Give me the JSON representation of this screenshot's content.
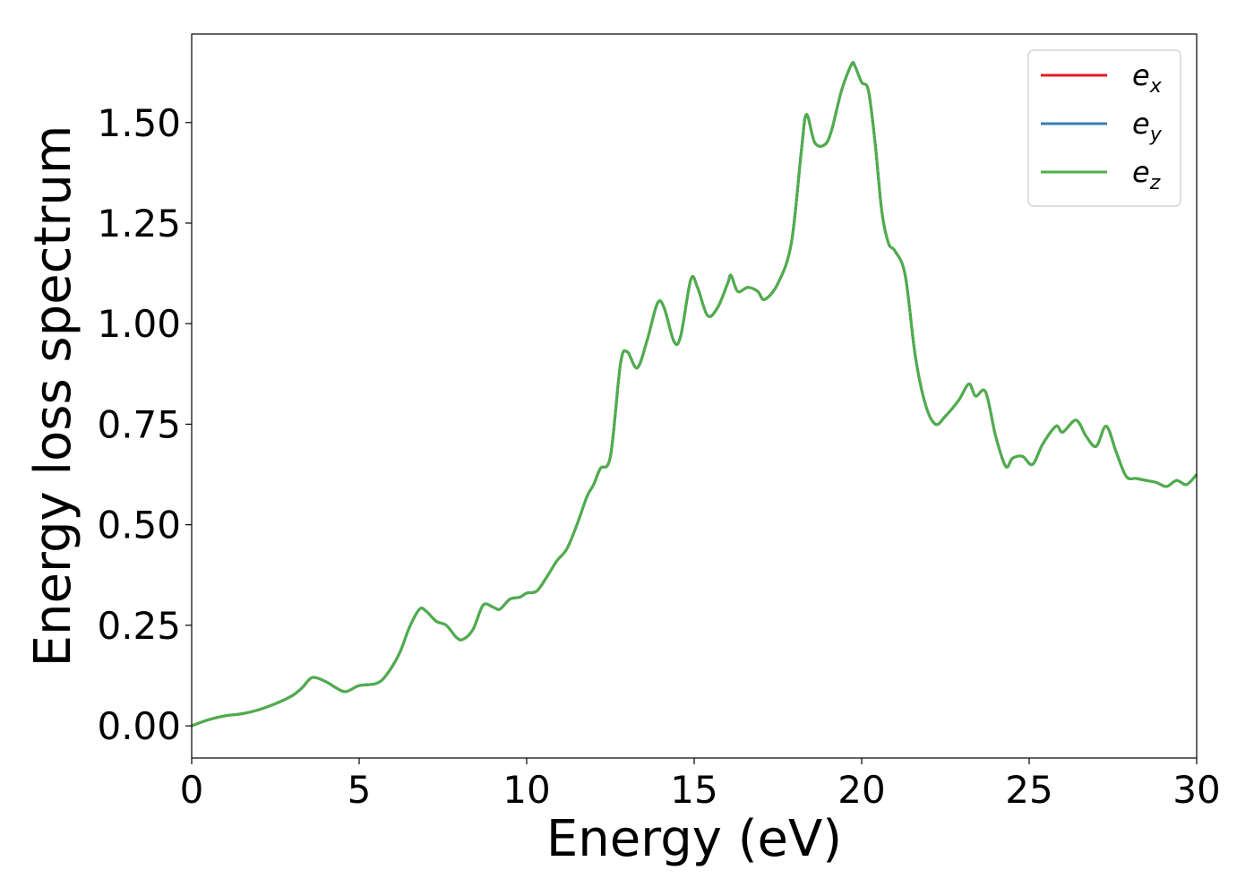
{
  "chart_data": {
    "type": "line",
    "title": "",
    "xlabel": "Energy (eV)",
    "ylabel": "Energy loss spectrum",
    "xlim": [
      0,
      30
    ],
    "ylim": [
      -0.08,
      1.72
    ],
    "xticks": [
      0,
      5,
      10,
      15,
      20,
      25,
      30
    ],
    "xtick_labels": [
      "0",
      "5",
      "10",
      "15",
      "20",
      "25",
      "30"
    ],
    "yticks": [
      0.0,
      0.25,
      0.5,
      0.75,
      1.0,
      1.25,
      1.5
    ],
    "ytick_labels": [
      "0.00",
      "0.25",
      "0.50",
      "0.75",
      "1.00",
      "1.25",
      "1.50"
    ],
    "grid": false,
    "legend_position": "top-right",
    "x": [
      0.0,
      0.5,
      1.0,
      1.5,
      2.0,
      2.5,
      3.0,
      3.3,
      3.6,
      4.0,
      4.3,
      4.6,
      5.0,
      5.5,
      5.8,
      6.2,
      6.5,
      6.8,
      7.0,
      7.3,
      7.6,
      7.9,
      8.1,
      8.4,
      8.7,
      9.0,
      9.2,
      9.5,
      9.8,
      10.0,
      10.3,
      10.6,
      10.9,
      11.2,
      11.5,
      11.8,
      12.0,
      12.2,
      12.5,
      12.8,
      13.0,
      13.3,
      13.6,
      13.9,
      14.1,
      14.4,
      14.6,
      14.9,
      15.1,
      15.4,
      15.7,
      16.0,
      16.1,
      16.3,
      16.6,
      16.9,
      17.1,
      17.5,
      17.9,
      18.2,
      18.35,
      18.6,
      18.9,
      19.1,
      19.4,
      19.7,
      19.8,
      20.0,
      20.2,
      20.4,
      20.6,
      20.8,
      21.0,
      21.3,
      21.6,
      21.9,
      22.2,
      22.5,
      22.9,
      23.2,
      23.4,
      23.7,
      24.0,
      24.3,
      24.5,
      24.8,
      25.1,
      25.4,
      25.8,
      26.0,
      26.4,
      26.7,
      27.0,
      27.3,
      27.6,
      27.9,
      28.2,
      28.5,
      28.8,
      29.1,
      29.4,
      29.7,
      30.0
    ],
    "series": [
      {
        "name": "e_x",
        "color": "#e41a1c",
        "values": [
          0.0,
          0.015,
          0.025,
          0.03,
          0.04,
          0.055,
          0.075,
          0.095,
          0.12,
          0.11,
          0.095,
          0.085,
          0.1,
          0.105,
          0.125,
          0.18,
          0.245,
          0.29,
          0.285,
          0.26,
          0.25,
          0.22,
          0.215,
          0.24,
          0.3,
          0.295,
          0.29,
          0.315,
          0.32,
          0.33,
          0.335,
          0.37,
          0.41,
          0.44,
          0.5,
          0.57,
          0.6,
          0.64,
          0.67,
          0.9,
          0.93,
          0.89,
          0.96,
          1.05,
          1.04,
          0.955,
          0.97,
          1.11,
          1.09,
          1.02,
          1.04,
          1.1,
          1.12,
          1.08,
          1.09,
          1.08,
          1.06,
          1.1,
          1.2,
          1.43,
          1.52,
          1.45,
          1.445,
          1.48,
          1.58,
          1.645,
          1.64,
          1.6,
          1.58,
          1.45,
          1.28,
          1.2,
          1.18,
          1.12,
          0.92,
          0.8,
          0.75,
          0.77,
          0.81,
          0.85,
          0.82,
          0.83,
          0.72,
          0.645,
          0.665,
          0.67,
          0.65,
          0.7,
          0.745,
          0.73,
          0.76,
          0.72,
          0.695,
          0.745,
          0.68,
          0.62,
          0.615,
          0.61,
          0.605,
          0.595,
          0.61,
          0.6,
          0.625
        ]
      },
      {
        "name": "e_y",
        "color": "#377eb8",
        "values": [
          0.0,
          0.015,
          0.025,
          0.03,
          0.04,
          0.055,
          0.075,
          0.095,
          0.12,
          0.11,
          0.095,
          0.085,
          0.1,
          0.105,
          0.125,
          0.18,
          0.245,
          0.29,
          0.285,
          0.26,
          0.25,
          0.22,
          0.215,
          0.24,
          0.3,
          0.295,
          0.29,
          0.315,
          0.32,
          0.33,
          0.335,
          0.37,
          0.41,
          0.44,
          0.5,
          0.57,
          0.6,
          0.64,
          0.67,
          0.9,
          0.93,
          0.89,
          0.96,
          1.05,
          1.04,
          0.955,
          0.97,
          1.11,
          1.09,
          1.02,
          1.04,
          1.1,
          1.12,
          1.08,
          1.09,
          1.08,
          1.06,
          1.1,
          1.2,
          1.43,
          1.52,
          1.45,
          1.445,
          1.48,
          1.58,
          1.645,
          1.64,
          1.6,
          1.58,
          1.45,
          1.28,
          1.2,
          1.18,
          1.12,
          0.92,
          0.8,
          0.75,
          0.77,
          0.81,
          0.85,
          0.82,
          0.83,
          0.72,
          0.645,
          0.665,
          0.67,
          0.65,
          0.7,
          0.745,
          0.73,
          0.76,
          0.72,
          0.695,
          0.745,
          0.68,
          0.62,
          0.615,
          0.61,
          0.605,
          0.595,
          0.61,
          0.6,
          0.625
        ]
      },
      {
        "name": "e_z",
        "color": "#4daf4a",
        "values": [
          0.0,
          0.015,
          0.025,
          0.03,
          0.04,
          0.055,
          0.075,
          0.095,
          0.12,
          0.11,
          0.095,
          0.085,
          0.1,
          0.105,
          0.125,
          0.18,
          0.245,
          0.29,
          0.285,
          0.26,
          0.25,
          0.22,
          0.215,
          0.24,
          0.3,
          0.295,
          0.29,
          0.315,
          0.32,
          0.33,
          0.335,
          0.37,
          0.41,
          0.44,
          0.5,
          0.57,
          0.6,
          0.64,
          0.67,
          0.9,
          0.93,
          0.89,
          0.96,
          1.05,
          1.04,
          0.955,
          0.97,
          1.11,
          1.09,
          1.02,
          1.04,
          1.1,
          1.12,
          1.08,
          1.09,
          1.08,
          1.06,
          1.1,
          1.2,
          1.43,
          1.52,
          1.45,
          1.445,
          1.48,
          1.58,
          1.645,
          1.64,
          1.6,
          1.58,
          1.45,
          1.28,
          1.2,
          1.18,
          1.12,
          0.92,
          0.8,
          0.75,
          0.77,
          0.81,
          0.85,
          0.82,
          0.83,
          0.72,
          0.645,
          0.665,
          0.67,
          0.65,
          0.7,
          0.745,
          0.73,
          0.76,
          0.72,
          0.695,
          0.745,
          0.68,
          0.62,
          0.615,
          0.61,
          0.605,
          0.595,
          0.61,
          0.6,
          0.625
        ]
      }
    ],
    "legend": [
      {
        "base": "e",
        "sub": "x",
        "color": "#e41a1c"
      },
      {
        "base": "e",
        "sub": "y",
        "color": "#377eb8"
      },
      {
        "base": "e",
        "sub": "z",
        "color": "#4daf4a"
      }
    ]
  }
}
